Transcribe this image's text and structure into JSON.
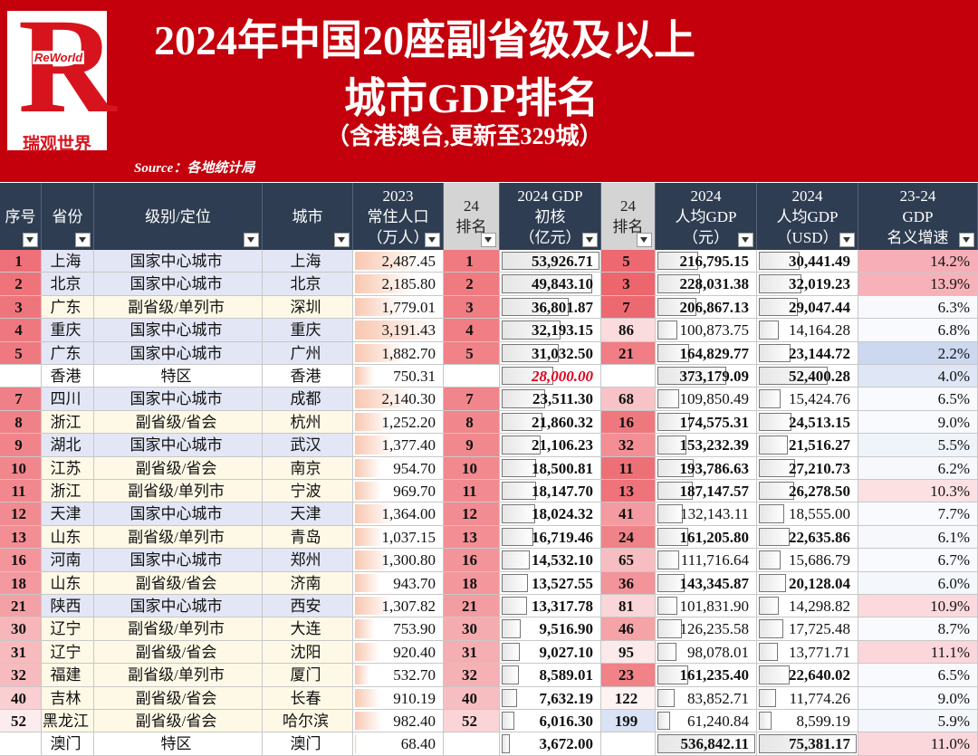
{
  "header": {
    "logo_letter": "R",
    "logo_brand": "ReWorld",
    "logo_name": "瑞观世界",
    "title_line1": "2024年中国20座副省级及以上",
    "title_line2": "城市GDP排名",
    "subtitle": "（含港澳台,更新至329城）",
    "source": "Source：各地统计局"
  },
  "table": {
    "columns": [
      [
        "序号"
      ],
      [
        "省份"
      ],
      [
        "级别/定位"
      ],
      [
        "城市"
      ],
      [
        "2023",
        "常住人口",
        "（万人）"
      ],
      [
        "24",
        "排名"
      ],
      [
        "2024 GDP",
        "初核",
        "（亿元）"
      ],
      [
        "24",
        "排名"
      ],
      [
        "2024",
        "人均GDP",
        "（元）"
      ],
      [
        "2024",
        "人均GDP",
        "（USD）"
      ],
      [
        "23-24",
        "GDP",
        "名义增速"
      ]
    ],
    "rows": [
      [
        "1",
        "上海",
        "国家中心城市",
        "上海",
        "2,487.45",
        "1",
        "53,926.71",
        "5",
        "216,795.15",
        "30,441.49",
        "14.2%"
      ],
      [
        "2",
        "北京",
        "国家中心城市",
        "北京",
        "2,185.80",
        "2",
        "49,843.10",
        "3",
        "228,031.38",
        "32,019.23",
        "13.9%"
      ],
      [
        "3",
        "广东",
        "副省级/单列市",
        "深圳",
        "1,779.01",
        "3",
        "36,801.87",
        "7",
        "206,867.13",
        "29,047.44",
        "6.3%"
      ],
      [
        "4",
        "重庆",
        "国家中心城市",
        "重庆",
        "3,191.43",
        "4",
        "32,193.15",
        "86",
        "100,873.75",
        "14,164.28",
        "6.8%"
      ],
      [
        "5",
        "广东",
        "国家中心城市",
        "广州",
        "1,882.70",
        "5",
        "31,032.50",
        "21",
        "164,829.77",
        "23,144.72",
        "2.2%"
      ],
      [
        null,
        "香港",
        "特区",
        "香港",
        "750.31",
        null,
        "28,000.00",
        null,
        "373,179.09",
        "52,400.28",
        "4.0%"
      ],
      [
        "7",
        "四川",
        "国家中心城市",
        "成都",
        "2,140.30",
        "7",
        "23,511.30",
        "68",
        "109,850.49",
        "15,424.76",
        "6.5%"
      ],
      [
        "8",
        "浙江",
        "副省级/省会",
        "杭州",
        "1,252.20",
        "8",
        "21,860.32",
        "16",
        "174,575.31",
        "24,513.15",
        "9.0%"
      ],
      [
        "9",
        "湖北",
        "国家中心城市",
        "武汉",
        "1,377.40",
        "9",
        "21,106.23",
        "32",
        "153,232.39",
        "21,516.27",
        "5.5%"
      ],
      [
        "10",
        "江苏",
        "副省级/省会",
        "南京",
        "954.70",
        "10",
        "18,500.81",
        "11",
        "193,786.63",
        "27,210.73",
        "6.2%"
      ],
      [
        "11",
        "浙江",
        "副省级/单列市",
        "宁波",
        "969.70",
        "11",
        "18,147.70",
        "13",
        "187,147.57",
        "26,278.50",
        "10.3%"
      ],
      [
        "12",
        "天津",
        "国家中心城市",
        "天津",
        "1,364.00",
        "12",
        "18,024.32",
        "41",
        "132,143.11",
        "18,555.00",
        "7.7%"
      ],
      [
        "13",
        "山东",
        "副省级/单列市",
        "青岛",
        "1,037.15",
        "13",
        "16,719.46",
        "24",
        "161,205.80",
        "22,635.86",
        "6.1%"
      ],
      [
        "16",
        "河南",
        "国家中心城市",
        "郑州",
        "1,300.80",
        "16",
        "14,532.10",
        "65",
        "111,716.64",
        "15,686.79",
        "6.7%"
      ],
      [
        "18",
        "山东",
        "副省级/省会",
        "济南",
        "943.70",
        "18",
        "13,527.55",
        "36",
        "143,345.87",
        "20,128.04",
        "6.0%"
      ],
      [
        "21",
        "陕西",
        "国家中心城市",
        "西安",
        "1,307.82",
        "21",
        "13,317.78",
        "81",
        "101,831.90",
        "14,298.82",
        "10.9%"
      ],
      [
        "30",
        "辽宁",
        "副省级/单列市",
        "大连",
        "753.90",
        "30",
        "9,516.90",
        "46",
        "126,235.58",
        "17,725.48",
        "8.7%"
      ],
      [
        "31",
        "辽宁",
        "副省级/省会",
        "沈阳",
        "920.40",
        "31",
        "9,027.10",
        "95",
        "98,078.01",
        "13,771.71",
        "11.1%"
      ],
      [
        "32",
        "福建",
        "副省级/单列市",
        "厦门",
        "532.70",
        "32",
        "8,589.01",
        "23",
        "161,235.40",
        "22,640.02",
        "6.5%"
      ],
      [
        "40",
        "吉林",
        "副省级/省会",
        "长春",
        "910.19",
        "40",
        "7,632.19",
        "122",
        "83,852.71",
        "11,774.26",
        "9.0%"
      ],
      [
        "52",
        "黑龙江",
        "副省级/省会",
        "哈尔滨",
        "982.40",
        "52",
        "6,016.30",
        "199",
        "61,240.84",
        "8,599.19",
        "5.9%"
      ],
      [
        null,
        "澳门",
        "特区",
        "澳门",
        "68.40",
        null,
        "3,672.00",
        null,
        "536,842.11",
        "75,381.17",
        "11.0%"
      ]
    ]
  }
}
